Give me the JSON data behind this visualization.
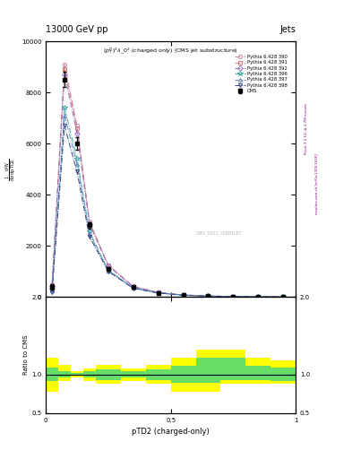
{
  "title_top": "13000 GeV pp",
  "title_right": "Jets",
  "plot_title": "$(p_T^D)^2\\lambda\\_0^2$ (charged only) (CMS jet substructure)",
  "xlabel": "pTD2 (charged-only)",
  "ylabel_ratio": "Ratio to CMS",
  "watermark": "CMS_2021_I1920187",
  "rivet_text": "Rivet 3.1.10, ≥ 1.7M events",
  "mcplots_text": "mcplots.cern.ch [arXiv:1306.3436]",
  "x_centers": [
    0.025,
    0.075,
    0.125,
    0.175,
    0.25,
    0.35,
    0.45,
    0.55,
    0.65,
    0.75,
    0.85,
    0.95
  ],
  "x_bins": [
    0.0,
    0.05,
    0.1,
    0.15,
    0.2,
    0.3,
    0.4,
    0.5,
    0.6,
    0.7,
    0.8,
    0.9,
    1.0
  ],
  "cms_data_y": [
    400,
    8500,
    6000,
    2800,
    1100,
    380,
    160,
    70,
    35,
    18,
    8,
    4
  ],
  "cms_data_yerr": [
    100,
    300,
    250,
    120,
    60,
    25,
    15,
    8,
    6,
    4,
    2,
    1.5
  ],
  "mc_390_y": [
    430,
    9100,
    6700,
    2950,
    1250,
    415,
    178,
    78,
    38,
    20,
    10,
    5
  ],
  "mc_391_y": [
    450,
    8900,
    6600,
    2900,
    1230,
    405,
    175,
    76,
    37,
    19,
    9.5,
    4.8
  ],
  "mc_392_y": [
    420,
    8700,
    6400,
    2850,
    1210,
    398,
    172,
    75,
    36,
    18.5,
    9.2,
    4.6
  ],
  "mc_396_y": [
    280,
    7400,
    5400,
    2550,
    1050,
    355,
    158,
    70,
    34,
    17,
    8.8,
    4.3
  ],
  "mc_397_y": [
    260,
    7100,
    5200,
    2450,
    1030,
    345,
    155,
    68,
    33,
    16.5,
    8.5,
    4.1
  ],
  "mc_398_y": [
    180,
    6700,
    4900,
    2350,
    1000,
    335,
    150,
    65,
    32,
    16,
    8.2,
    4.0
  ],
  "mc_390_color": "#cc88aa",
  "mc_391_color": "#cc7777",
  "mc_392_color": "#9977cc",
  "mc_396_color": "#44aaaa",
  "mc_397_color": "#6688bb",
  "mc_398_color": "#334488",
  "mc_390_marker": "o",
  "mc_391_marker": "s",
  "mc_392_marker": "D",
  "mc_396_marker": "*",
  "mc_397_marker": "^",
  "mc_398_marker": "v",
  "ylim_main": [
    0,
    10000
  ],
  "yticks_main": [
    0,
    2000,
    4000,
    6000,
    8000,
    10000
  ],
  "xlim": [
    0.0,
    1.0
  ],
  "ratio_ylim": [
    0.5,
    2.0
  ],
  "ratio_yticks": [
    0.5,
    1.0,
    2.0
  ],
  "x_bin_lo": [
    0.0,
    0.05,
    0.1,
    0.15,
    0.2,
    0.3,
    0.4,
    0.5,
    0.6,
    0.7,
    0.8,
    0.9
  ],
  "x_bin_hi": [
    0.05,
    0.1,
    0.15,
    0.2,
    0.3,
    0.4,
    0.5,
    0.6,
    0.7,
    0.8,
    0.9,
    1.0
  ],
  "ratio_yellow_lo": [
    0.78,
    0.92,
    0.96,
    0.92,
    0.88,
    0.92,
    0.88,
    0.78,
    0.78,
    0.88,
    0.88,
    0.88
  ],
  "ratio_yellow_hi": [
    1.22,
    1.12,
    1.04,
    1.08,
    1.12,
    1.08,
    1.12,
    1.22,
    1.32,
    1.32,
    1.22,
    1.18
  ],
  "ratio_green_lo": [
    0.91,
    0.96,
    0.985,
    0.96,
    0.93,
    0.96,
    0.93,
    0.89,
    0.89,
    0.93,
    0.93,
    0.91
  ],
  "ratio_green_hi": [
    1.09,
    1.04,
    1.015,
    1.04,
    1.07,
    1.04,
    1.07,
    1.11,
    1.21,
    1.21,
    1.11,
    1.09
  ],
  "background_color": "#ffffff"
}
